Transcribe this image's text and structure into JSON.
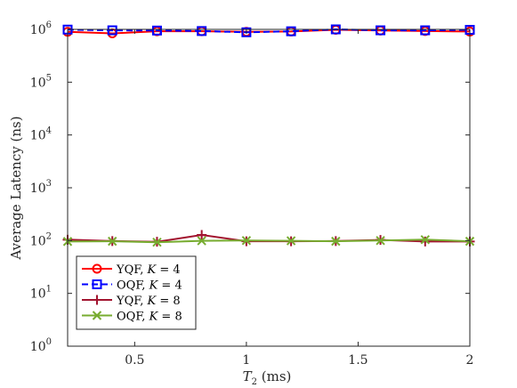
{
  "chart_data": {
    "type": "line",
    "xlabel": {
      "symbol": "T",
      "subscript": "2",
      "unit": " (ms)"
    },
    "ylabel": "Average Latency (ns)",
    "x_ticks": [
      "0.5",
      "1",
      "1.5",
      "2"
    ],
    "y_ticks": [
      {
        "base": "10",
        "exp": "0"
      },
      {
        "base": "10",
        "exp": "1"
      },
      {
        "base": "10",
        "exp": "2"
      },
      {
        "base": "10",
        "exp": "3"
      },
      {
        "base": "10",
        "exp": "4"
      },
      {
        "base": "10",
        "exp": "5"
      },
      {
        "base": "10",
        "exp": "6"
      }
    ],
    "xlim": [
      0.2,
      2.0
    ],
    "ylim": [
      1,
      1000000
    ],
    "yscale": "log",
    "grid": false,
    "legend_position": "bottom-left",
    "x": [
      0.2,
      0.4,
      0.6,
      0.8,
      1.0,
      1.2,
      1.4,
      1.6,
      1.8,
      2.0
    ],
    "series": [
      {
        "name": "YQF, K = 4",
        "label_text": "YQF, ",
        "label_var": "K",
        "label_value": " = 4",
        "color": "#ff0000",
        "marker": "circle",
        "dash": "solid",
        "values": [
          900000,
          840000,
          920000,
          920000,
          900000,
          910000,
          980000,
          950000,
          930000,
          910000
        ]
      },
      {
        "name": "OQF, K = 4",
        "label_text": "OQF, ",
        "label_var": "K",
        "label_value": " = 4",
        "color": "#0000ff",
        "marker": "square",
        "dash": "dashed",
        "values": [
          990000,
          960000,
          950000,
          930000,
          880000,
          920000,
          1000000,
          960000,
          960000,
          980000
        ]
      },
      {
        "name": "YQF, K = 8",
        "label_text": "YQF, ",
        "label_var": "K",
        "label_value": " = 8",
        "color": "#a2142f",
        "marker": "plus",
        "dash": "solid",
        "values": [
          104,
          98,
          95,
          128,
          97,
          97,
          98,
          103,
          96,
          96
        ]
      },
      {
        "name": "OQF, K = 8",
        "label_text": "OQF, ",
        "label_var": "K",
        "label_value": " = 8",
        "color": "#77ac30",
        "marker": "x",
        "dash": "solid",
        "values": [
          96,
          97,
          93,
          99,
          100,
          99,
          97,
          100,
          104,
          97
        ]
      }
    ]
  }
}
